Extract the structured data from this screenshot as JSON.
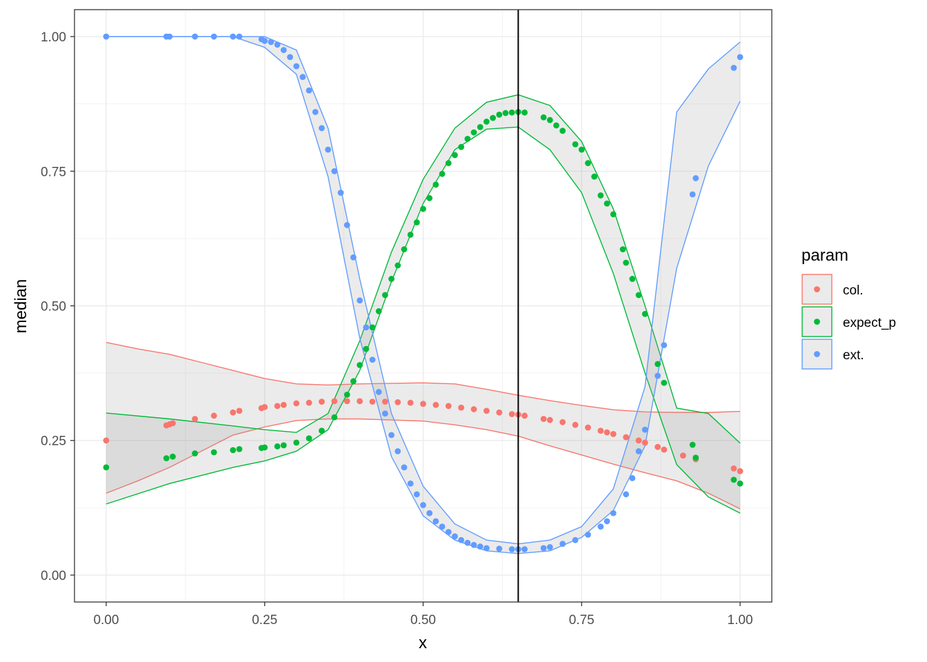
{
  "chart_data": {
    "type": "scatter",
    "xlabel": "x",
    "ylabel": "median",
    "xlim": [
      -0.05,
      1.05
    ],
    "ylim": [
      -0.05,
      1.05
    ],
    "x_ticks": [
      0,
      0.25,
      0.5,
      0.75,
      1
    ],
    "y_ticks": [
      0,
      0.25,
      0.5,
      0.75,
      1
    ],
    "x_tick_labels": [
      "0.00",
      "0.25",
      "0.50",
      "0.75",
      "1.00"
    ],
    "y_tick_labels": [
      "0.00",
      "0.25",
      "0.50",
      "0.75",
      "1.00"
    ],
    "grid": true,
    "vline": 0.65,
    "legend": {
      "title": "param",
      "placement": "right"
    },
    "series": [
      {
        "name": "col.",
        "color": "#F8766D",
        "points": [
          [
            0,
            0.25
          ],
          [
            0.095,
            0.278
          ],
          [
            0.1,
            0.28
          ],
          [
            0.105,
            0.282
          ],
          [
            0.14,
            0.29
          ],
          [
            0.17,
            0.296
          ],
          [
            0.2,
            0.302
          ],
          [
            0.21,
            0.305
          ],
          [
            0.245,
            0.31
          ],
          [
            0.25,
            0.312
          ],
          [
            0.27,
            0.314
          ],
          [
            0.28,
            0.316
          ],
          [
            0.3,
            0.319
          ],
          [
            0.32,
            0.32
          ],
          [
            0.34,
            0.322
          ],
          [
            0.36,
            0.323
          ],
          [
            0.38,
            0.323
          ],
          [
            0.4,
            0.323
          ],
          [
            0.42,
            0.322
          ],
          [
            0.44,
            0.322
          ],
          [
            0.46,
            0.321
          ],
          [
            0.48,
            0.32
          ],
          [
            0.5,
            0.318
          ],
          [
            0.52,
            0.316
          ],
          [
            0.54,
            0.314
          ],
          [
            0.56,
            0.311
          ],
          [
            0.58,
            0.308
          ],
          [
            0.6,
            0.305
          ],
          [
            0.62,
            0.302
          ],
          [
            0.64,
            0.299
          ],
          [
            0.65,
            0.298
          ],
          [
            0.66,
            0.296
          ],
          [
            0.69,
            0.29
          ],
          [
            0.7,
            0.288
          ],
          [
            0.72,
            0.284
          ],
          [
            0.74,
            0.279
          ],
          [
            0.76,
            0.274
          ],
          [
            0.78,
            0.268
          ],
          [
            0.79,
            0.265
          ],
          [
            0.8,
            0.262
          ],
          [
            0.82,
            0.256
          ],
          [
            0.84,
            0.25
          ],
          [
            0.85,
            0.246
          ],
          [
            0.87,
            0.238
          ],
          [
            0.88,
            0.233
          ],
          [
            0.91,
            0.222
          ],
          [
            0.93,
            0.215
          ],
          [
            0.99,
            0.198
          ],
          [
            1.0,
            0.193
          ]
        ],
        "band": {
          "x": [
            0,
            0.05,
            0.1,
            0.15,
            0.2,
            0.25,
            0.3,
            0.35,
            0.4,
            0.45,
            0.5,
            0.55,
            0.6,
            0.65,
            0.7,
            0.75,
            0.8,
            0.85,
            0.9,
            0.95,
            1.0
          ],
          "upper": [
            0.432,
            0.42,
            0.41,
            0.395,
            0.38,
            0.365,
            0.355,
            0.353,
            0.355,
            0.356,
            0.357,
            0.355,
            0.345,
            0.334,
            0.324,
            0.315,
            0.307,
            0.303,
            0.302,
            0.302,
            0.304
          ],
          "lower": [
            0.152,
            0.175,
            0.2,
            0.23,
            0.26,
            0.275,
            0.287,
            0.29,
            0.29,
            0.288,
            0.286,
            0.279,
            0.27,
            0.258,
            0.24,
            0.223,
            0.206,
            0.19,
            0.175,
            0.152,
            0.123
          ]
        }
      },
      {
        "name": "expect_p",
        "color": "#00BA38",
        "points": [
          [
            0,
            0.2
          ],
          [
            0.095,
            0.217
          ],
          [
            0.105,
            0.22
          ],
          [
            0.14,
            0.226
          ],
          [
            0.17,
            0.228
          ],
          [
            0.2,
            0.232
          ],
          [
            0.21,
            0.234
          ],
          [
            0.245,
            0.236
          ],
          [
            0.25,
            0.237
          ],
          [
            0.27,
            0.239
          ],
          [
            0.28,
            0.241
          ],
          [
            0.3,
            0.246
          ],
          [
            0.32,
            0.254
          ],
          [
            0.34,
            0.268
          ],
          [
            0.36,
            0.293
          ],
          [
            0.38,
            0.335
          ],
          [
            0.39,
            0.36
          ],
          [
            0.4,
            0.39
          ],
          [
            0.41,
            0.42
          ],
          [
            0.42,
            0.46
          ],
          [
            0.43,
            0.49
          ],
          [
            0.44,
            0.52
          ],
          [
            0.45,
            0.55
          ],
          [
            0.46,
            0.575
          ],
          [
            0.47,
            0.605
          ],
          [
            0.48,
            0.632
          ],
          [
            0.49,
            0.655
          ],
          [
            0.5,
            0.68
          ],
          [
            0.51,
            0.7
          ],
          [
            0.52,
            0.725
          ],
          [
            0.53,
            0.745
          ],
          [
            0.54,
            0.765
          ],
          [
            0.55,
            0.78
          ],
          [
            0.56,
            0.795
          ],
          [
            0.57,
            0.81
          ],
          [
            0.58,
            0.822
          ],
          [
            0.59,
            0.832
          ],
          [
            0.6,
            0.842
          ],
          [
            0.61,
            0.849
          ],
          [
            0.62,
            0.855
          ],
          [
            0.63,
            0.858
          ],
          [
            0.64,
            0.859
          ],
          [
            0.65,
            0.86
          ],
          [
            0.66,
            0.859
          ],
          [
            0.69,
            0.85
          ],
          [
            0.7,
            0.845
          ],
          [
            0.71,
            0.835
          ],
          [
            0.72,
            0.825
          ],
          [
            0.74,
            0.8
          ],
          [
            0.75,
            0.79
          ],
          [
            0.76,
            0.765
          ],
          [
            0.77,
            0.74
          ],
          [
            0.78,
            0.705
          ],
          [
            0.79,
            0.69
          ],
          [
            0.8,
            0.67
          ],
          [
            0.815,
            0.605
          ],
          [
            0.82,
            0.58
          ],
          [
            0.83,
            0.55
          ],
          [
            0.84,
            0.52
          ],
          [
            0.85,
            0.485
          ],
          [
            0.87,
            0.392
          ],
          [
            0.88,
            0.357
          ],
          [
            0.925,
            0.242
          ],
          [
            0.93,
            0.218
          ],
          [
            0.99,
            0.177
          ],
          [
            1.0,
            0.17
          ]
        ],
        "band": {
          "x": [
            0,
            0.1,
            0.2,
            0.25,
            0.3,
            0.35,
            0.4,
            0.45,
            0.5,
            0.55,
            0.6,
            0.65,
            0.7,
            0.75,
            0.8,
            0.85,
            0.9,
            0.95,
            1.0
          ],
          "upper": [
            0.301,
            0.29,
            0.277,
            0.27,
            0.265,
            0.3,
            0.435,
            0.6,
            0.735,
            0.83,
            0.878,
            0.892,
            0.872,
            0.805,
            0.68,
            0.5,
            0.31,
            0.3,
            0.245
          ],
          "lower": [
            0.132,
            0.17,
            0.2,
            0.212,
            0.23,
            0.27,
            0.38,
            0.545,
            0.69,
            0.79,
            0.828,
            0.832,
            0.79,
            0.71,
            0.56,
            0.375,
            0.205,
            0.145,
            0.115
          ]
        }
      },
      {
        "name": "ext.",
        "color": "#619CFF",
        "points": [
          [
            0,
            1.0
          ],
          [
            0.095,
            1.0
          ],
          [
            0.1,
            1.0
          ],
          [
            0.14,
            1.0
          ],
          [
            0.17,
            1.0
          ],
          [
            0.2,
            1.0
          ],
          [
            0.21,
            1.0
          ],
          [
            0.245,
            0.995
          ],
          [
            0.25,
            0.992
          ],
          [
            0.26,
            0.99
          ],
          [
            0.27,
            0.985
          ],
          [
            0.28,
            0.975
          ],
          [
            0.29,
            0.962
          ],
          [
            0.3,
            0.945
          ],
          [
            0.31,
            0.925
          ],
          [
            0.32,
            0.9
          ],
          [
            0.33,
            0.86
          ],
          [
            0.34,
            0.83
          ],
          [
            0.35,
            0.79
          ],
          [
            0.36,
            0.75
          ],
          [
            0.37,
            0.71
          ],
          [
            0.38,
            0.65
          ],
          [
            0.39,
            0.59
          ],
          [
            0.4,
            0.51
          ],
          [
            0.41,
            0.46
          ],
          [
            0.42,
            0.4
          ],
          [
            0.43,
            0.34
          ],
          [
            0.44,
            0.3
          ],
          [
            0.45,
            0.26
          ],
          [
            0.46,
            0.23
          ],
          [
            0.47,
            0.2
          ],
          [
            0.48,
            0.17
          ],
          [
            0.49,
            0.15
          ],
          [
            0.5,
            0.13
          ],
          [
            0.51,
            0.115
          ],
          [
            0.52,
            0.1
          ],
          [
            0.53,
            0.09
          ],
          [
            0.54,
            0.08
          ],
          [
            0.55,
            0.072
          ],
          [
            0.56,
            0.065
          ],
          [
            0.57,
            0.06
          ],
          [
            0.58,
            0.056
          ],
          [
            0.59,
            0.053
          ],
          [
            0.6,
            0.05
          ],
          [
            0.62,
            0.049
          ],
          [
            0.64,
            0.048
          ],
          [
            0.65,
            0.048
          ],
          [
            0.66,
            0.048
          ],
          [
            0.69,
            0.05
          ],
          [
            0.7,
            0.052
          ],
          [
            0.72,
            0.058
          ],
          [
            0.74,
            0.065
          ],
          [
            0.76,
            0.075
          ],
          [
            0.78,
            0.09
          ],
          [
            0.79,
            0.1
          ],
          [
            0.8,
            0.115
          ],
          [
            0.82,
            0.15
          ],
          [
            0.83,
            0.18
          ],
          [
            0.84,
            0.23
          ],
          [
            0.85,
            0.27
          ],
          [
            0.87,
            0.37
          ],
          [
            0.88,
            0.427
          ],
          [
            0.925,
            0.707
          ],
          [
            0.93,
            0.737
          ],
          [
            0.99,
            0.942
          ],
          [
            1.0,
            0.962
          ]
        ],
        "band": {
          "x": [
            0,
            0.2,
            0.25,
            0.3,
            0.35,
            0.4,
            0.45,
            0.5,
            0.55,
            0.6,
            0.65,
            0.7,
            0.75,
            0.8,
            0.85,
            0.9,
            0.95,
            1.0
          ],
          "upper": [
            1.0,
            1.0,
            1.0,
            0.975,
            0.83,
            0.55,
            0.3,
            0.165,
            0.095,
            0.065,
            0.058,
            0.065,
            0.09,
            0.16,
            0.35,
            0.86,
            0.94,
            0.99
          ],
          "lower": [
            1.0,
            1.0,
            0.98,
            0.93,
            0.74,
            0.44,
            0.22,
            0.11,
            0.065,
            0.045,
            0.04,
            0.045,
            0.07,
            0.12,
            0.24,
            0.57,
            0.76,
            0.88
          ]
        }
      }
    ]
  }
}
